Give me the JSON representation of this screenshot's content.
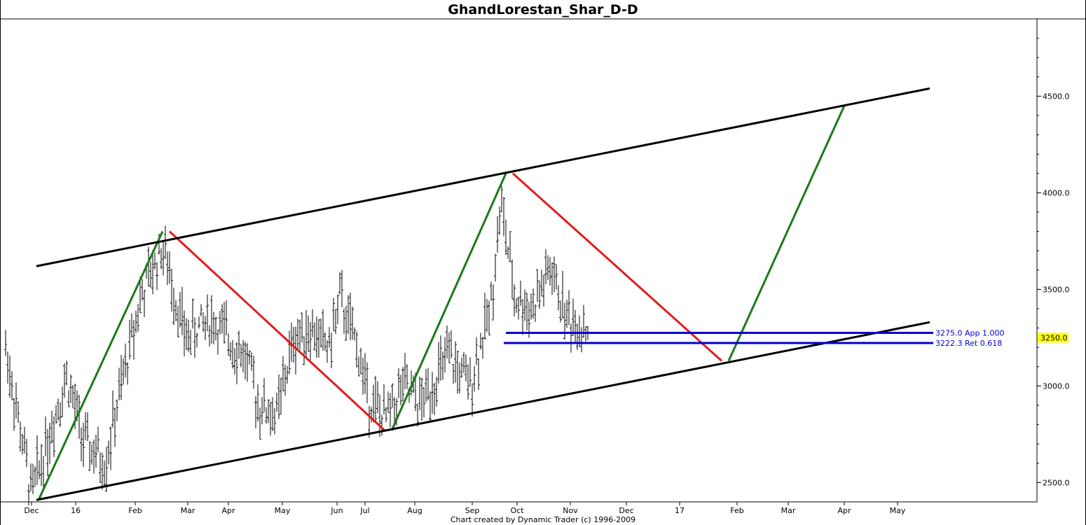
{
  "chart_data": {
    "type": "ohlc",
    "title": "GhandLorestan_Shar_D-D",
    "footer": "Chart created by Dynamic Trader  (c) 1996-2009",
    "x_axis_labels": [
      "Dec",
      "16",
      "Feb",
      "Mar",
      "Apr",
      "May",
      "Jun",
      "Jul",
      "Aug",
      "Sep",
      "Oct",
      "Nov",
      "Dec",
      "17",
      "Feb",
      "Mar",
      "Apr",
      "May"
    ],
    "y_ticks": [
      "4500.0",
      "4000.0",
      "3500.0",
      "3000.0",
      "2500.0"
    ],
    "ylim": [
      2400,
      4900
    ],
    "current_price": {
      "label": "3250.0",
      "value": 3250,
      "color": "#ffff00"
    },
    "channel_lines": [
      {
        "from": [
          "Dec",
          3620
        ],
        "to": [
          "May+2w",
          4540
        ],
        "color": "#000000"
      },
      {
        "from": [
          "Dec",
          2410
        ],
        "to": [
          "May+2w",
          3330
        ],
        "color": "#000000"
      }
    ],
    "swing_lines": [
      {
        "from": [
          "Dec",
          2410
        ],
        "to": [
          "Feb+2w",
          3800
        ],
        "color": "#1a7a1a"
      },
      {
        "from": [
          "Feb+2w",
          3800
        ],
        "to": [
          "Jul+1w",
          2770
        ],
        "color": "#e21b1b"
      },
      {
        "from": [
          "Jul+1w",
          2770
        ],
        "to": [
          "Sep+3w",
          4100
        ],
        "color": "#1a7a1a"
      },
      {
        "from": [
          "Sep+3w",
          4100
        ],
        "to": [
          "Jan+3w",
          3130
        ],
        "color": "#e21b1b"
      },
      {
        "from": [
          "Jan+3w",
          3130
        ],
        "to": [
          "Apr",
          4450
        ],
        "color": "#1a7a1a"
      }
    ],
    "levels": [
      {
        "value": 3275.0,
        "label": "3275.0 App 1.000",
        "color": "#0000cc"
      },
      {
        "value": 3222.3,
        "label": "3222.3 Ret 0.618",
        "color": "#0000cc"
      }
    ],
    "colors": {
      "bars": "#000000",
      "up_swing": "#1a7a1a",
      "down_swing": "#e21b1b",
      "channel": "#000000",
      "levels": "#0000cc"
    }
  }
}
